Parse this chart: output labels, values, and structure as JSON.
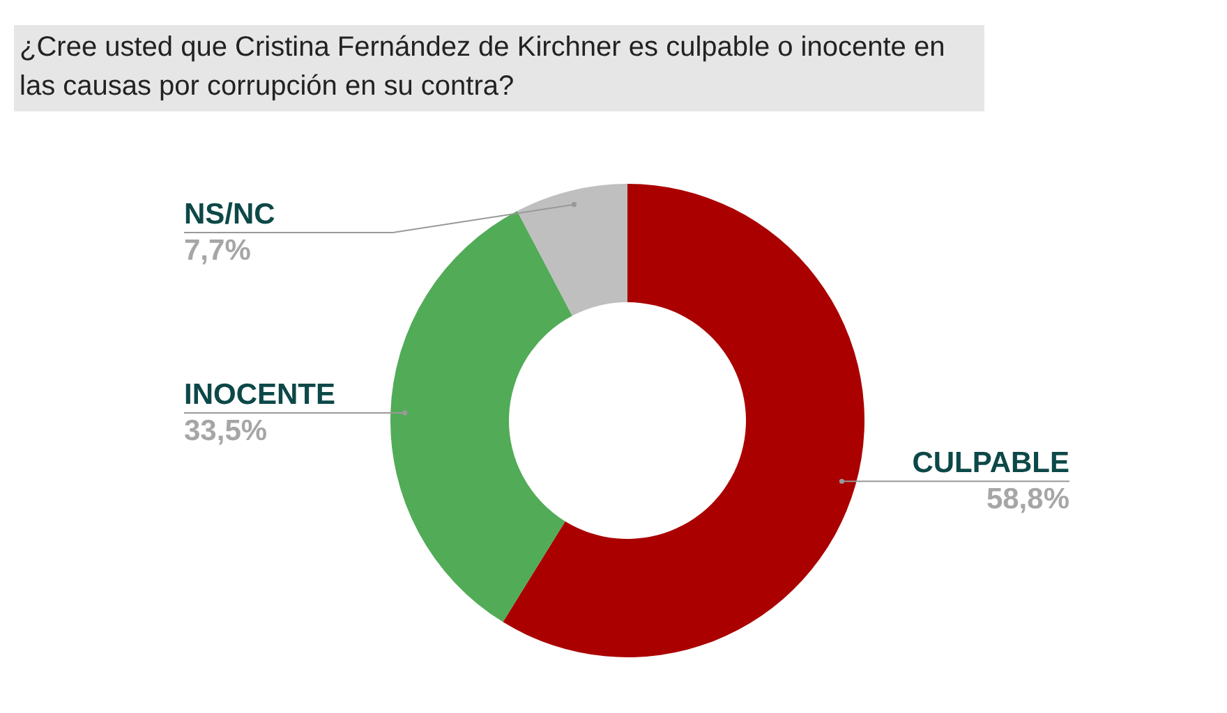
{
  "chart_data": {
    "type": "donut",
    "title": "¿Cree usted que Cristina Fernández de Kirchner es culpable o inocente en las causas por corrupción en su contra?",
    "categories": [
      "CULPABLE",
      "INOCENTE",
      "NS/NC"
    ],
    "values": [
      58.8,
      33.5,
      7.7
    ],
    "colors": [
      "#aa0000",
      "#52ab57",
      "#bfbfbf"
    ],
    "value_labels": [
      "58,8%",
      "33,5%",
      "7,7%"
    ],
    "legend": false
  }
}
